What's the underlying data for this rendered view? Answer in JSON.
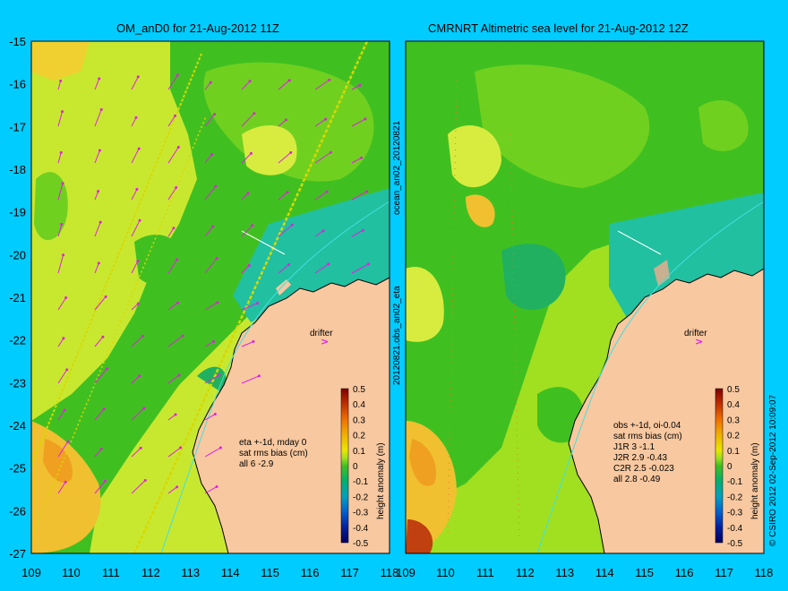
{
  "left_panel": {
    "title": "OM_anD0 for 21-Aug-2012 11Z",
    "stats": [
      "eta +-1d, mday 0",
      "sat rms bias (cm)",
      "all 6 -2.9"
    ],
    "drifter_label": "drifter"
  },
  "right_panel": {
    "title": "CMRNRT Altimetric sea level  for 21-Aug-2012 12Z",
    "stats": [
      "obs +-1d, oi-0.04",
      "sat rms bias (cm)",
      "J1R   3 -1.1",
      "J2R   2.9 -0.43",
      "C2R   2.5 -0.023",
      "all 2.8 -0.49"
    ],
    "drifter_label": "drifter"
  },
  "side_labels": {
    "left": "20120821.obs_an02_eta",
    "left_upper": "ocean_an02_20120821",
    "right": "© CSIRO 2012   02-Sep-2012 10:09:07"
  },
  "colorbar": {
    "label": "height anomaly (m)",
    "ticks": [
      "0.5",
      "0.4",
      "0.3",
      "0.2",
      "0.1",
      "0",
      "-0.1",
      "-0.2",
      "-0.3",
      "-0.4",
      "-0.5"
    ]
  },
  "axes": {
    "x_ticks": [
      "109",
      "110",
      "111",
      "112",
      "113",
      "114",
      "115",
      "116",
      "117",
      "118"
    ],
    "y_ticks": [
      "-15",
      "-16",
      "-17",
      "-18",
      "-19",
      "-20",
      "-21",
      "-22",
      "-23",
      "-24",
      "-25",
      "-26",
      "-27"
    ],
    "x_range": [
      109,
      118
    ],
    "y_range": [
      -27,
      -15
    ]
  },
  "colors": {
    "background": "#00ccff",
    "land": "#f8c8a0",
    "vector": "#e020e0",
    "track": "#d0d000"
  }
}
